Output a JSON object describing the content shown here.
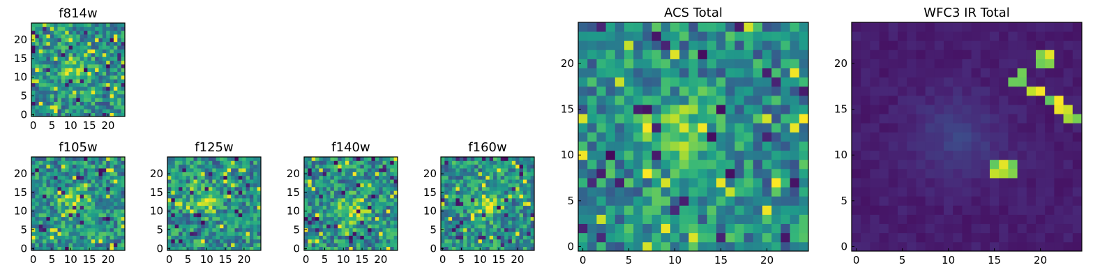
{
  "chart_data": [
    {
      "type": "heatmap",
      "id": "f814w",
      "title": "f814w",
      "size": 25,
      "xticks": [
        0,
        5,
        10,
        15,
        20
      ],
      "yticks": [
        0,
        5,
        10,
        15,
        20
      ],
      "colormap": "viridis",
      "pattern": "diffuse source near center on noisy background",
      "peak_location": [
        11,
        11
      ]
    },
    {
      "type": "heatmap",
      "id": "f105w",
      "title": "f105w",
      "size": 25,
      "xticks": [
        0,
        5,
        10,
        15,
        20
      ],
      "yticks": [
        0,
        5,
        10,
        15,
        20
      ],
      "colormap": "viridis",
      "pattern": "compact source at center on noisy background",
      "peak_location": [
        12,
        12
      ]
    },
    {
      "type": "heatmap",
      "id": "f125w",
      "title": "f125w",
      "size": 25,
      "xticks": [
        0,
        5,
        10,
        15,
        20
      ],
      "yticks": [
        0,
        5,
        10,
        15,
        20
      ],
      "colormap": "viridis",
      "pattern": "extended source, upper-left of center",
      "peak_location": [
        10,
        13
      ]
    },
    {
      "type": "heatmap",
      "id": "f140w",
      "title": "f140w",
      "size": 25,
      "xticks": [
        0,
        5,
        10,
        15,
        20
      ],
      "yticks": [
        0,
        5,
        10,
        15,
        20
      ],
      "colormap": "viridis",
      "pattern": "source slightly below center",
      "peak_location": [
        12,
        10
      ]
    },
    {
      "type": "heatmap",
      "id": "f160w",
      "title": "f160w",
      "size": 25,
      "xticks": [
        0,
        5,
        10,
        15,
        20
      ],
      "yticks": [
        0,
        5,
        10,
        15,
        20
      ],
      "colormap": "viridis",
      "pattern": "source at center",
      "peak_location": [
        12,
        12
      ]
    },
    {
      "type": "heatmap",
      "id": "acs_total",
      "title": "ACS Total",
      "size": 25,
      "xticks": [
        0,
        5,
        10,
        15,
        20
      ],
      "yticks": [
        0,
        5,
        10,
        15,
        20
      ],
      "colormap": "viridis",
      "pattern": "bright source centered near (11, 12) on noisy background",
      "peak_location": [
        11,
        12
      ]
    },
    {
      "type": "heatmap",
      "id": "wfc3_ir_total",
      "title": "WFC3 IR Total",
      "size": 25,
      "xticks": [
        0,
        5,
        10,
        15,
        20
      ],
      "yticks": [
        0,
        5,
        10,
        15,
        20
      ],
      "colormap": "viridis",
      "pattern": "faint diffuse glow near (11, 12); bright diagonal streak from (20, 21) to (24, 14); bright 2x2 block at (16-17, 8-9)",
      "peak_location": [
        16,
        8
      ],
      "bright_pixels": [
        [
          20,
          21
        ],
        [
          21,
          21
        ],
        [
          20,
          20
        ],
        [
          21,
          20
        ],
        [
          18,
          19
        ],
        [
          17,
          18
        ],
        [
          18,
          18
        ],
        [
          19,
          17
        ],
        [
          20,
          17
        ],
        [
          21,
          16
        ],
        [
          22,
          16
        ],
        [
          22,
          15
        ],
        [
          23,
          15
        ],
        [
          23,
          14
        ],
        [
          24,
          14
        ],
        [
          16,
          9
        ],
        [
          17,
          9
        ],
        [
          16,
          8
        ],
        [
          17,
          8
        ],
        [
          15,
          9
        ],
        [
          15,
          8
        ]
      ]
    }
  ]
}
